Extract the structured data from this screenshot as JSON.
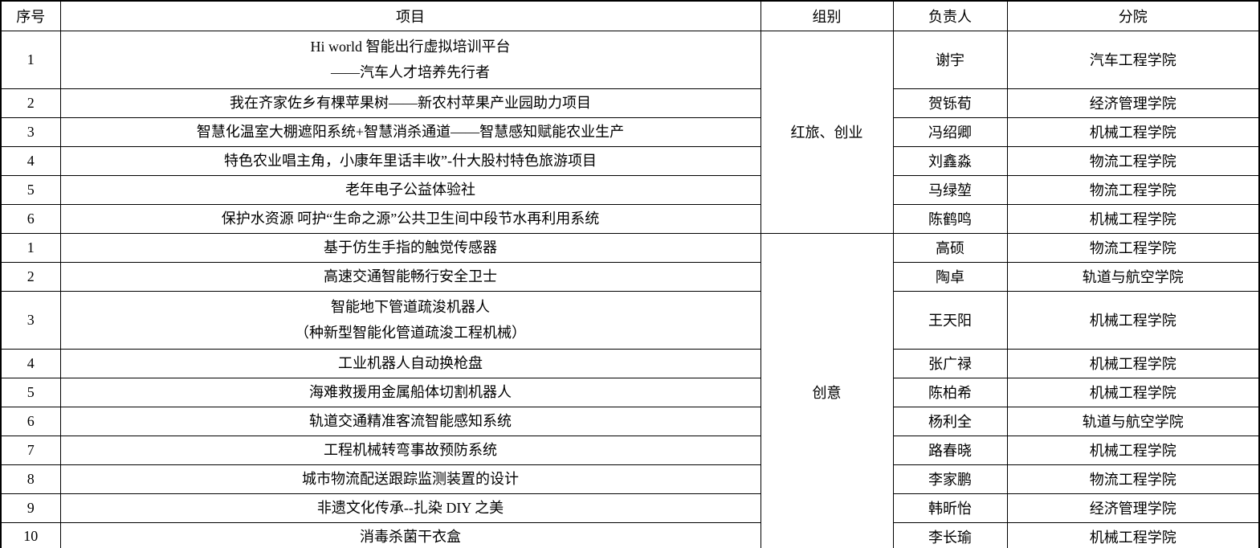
{
  "table": {
    "headers": [
      "序号",
      "项目",
      "组别",
      "负责人",
      "分院"
    ],
    "sections": [
      {
        "group": "红旅、创业",
        "rows": [
          {
            "no": "1",
            "project_lines": [
              "Hi world 智能出行虚拟培训平台",
              "——汽车人才培养先行者"
            ],
            "leader": "谢宇",
            "college": "汽车工程学院"
          },
          {
            "no": "2",
            "project_lines": [
              "我在齐家佐乡有棵苹果树——新农村苹果产业园助力项目"
            ],
            "leader": "贺铄荀",
            "college": "经济管理学院"
          },
          {
            "no": "3",
            "project_lines": [
              "智慧化温室大棚遮阳系统+智慧消杀通道——智慧感知赋能农业生产"
            ],
            "leader": "冯绍卿",
            "college": "机械工程学院"
          },
          {
            "no": "4",
            "project_lines": [
              "特色农业唱主角，小康年里话丰收”-什大股村特色旅游项目"
            ],
            "leader": "刘鑫淼",
            "college": "物流工程学院"
          },
          {
            "no": "5",
            "project_lines": [
              "老年电子公益体验社"
            ],
            "leader": "马绿堃",
            "college": "物流工程学院"
          },
          {
            "no": "6",
            "project_lines": [
              "保护水资源 呵护“生命之源”公共卫生间中段节水再利用系统"
            ],
            "leader": "陈鹤鸣",
            "college": "机械工程学院"
          }
        ]
      },
      {
        "group": "创意",
        "rows": [
          {
            "no": "1",
            "project_lines": [
              "基于仿生手指的触觉传感器"
            ],
            "leader": "高硕",
            "college": "物流工程学院"
          },
          {
            "no": "2",
            "project_lines": [
              "高速交通智能畅行安全卫士"
            ],
            "leader": "陶卓",
            "college": "轨道与航空学院"
          },
          {
            "no": "3",
            "project_lines": [
              "智能地下管道疏浚机器人",
              "（种新型智能化管道疏浚工程机械）"
            ],
            "leader": "王天阳",
            "college": "机械工程学院"
          },
          {
            "no": "4",
            "project_lines": [
              "工业机器人自动换枪盘"
            ],
            "leader": "张广禄",
            "college": "机械工程学院"
          },
          {
            "no": "5",
            "project_lines": [
              "海难救援用金属船体切割机器人"
            ],
            "leader": "陈柏希",
            "college": "机械工程学院"
          },
          {
            "no": "6",
            "project_lines": [
              "轨道交通精准客流智能感知系统"
            ],
            "leader": "杨利全",
            "college": "轨道与航空学院"
          },
          {
            "no": "7",
            "project_lines": [
              "工程机械转弯事故预防系统"
            ],
            "leader": "路春晓",
            "college": "机械工程学院"
          },
          {
            "no": "8",
            "project_lines": [
              "城市物流配送跟踪监测装置的设计"
            ],
            "leader": "李家鹏",
            "college": "物流工程学院"
          },
          {
            "no": "9",
            "project_lines": [
              "非遗文化传承--扎染 DIY 之美"
            ],
            "leader": "韩昕怡",
            "college": "经济管理学院"
          },
          {
            "no": "10",
            "project_lines": [
              "消毒杀菌干衣盒"
            ],
            "leader": "李长瑜",
            "college": "机械工程学院"
          }
        ]
      }
    ]
  }
}
